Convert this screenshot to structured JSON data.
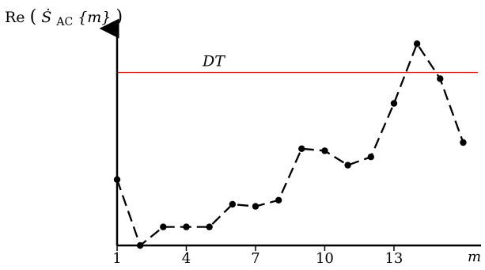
{
  "chart_data": {
    "type": "line",
    "ylabel": {
      "prefix": "Re",
      "open": "(",
      "symbol": "Ṡ",
      "subscript": "AC",
      "arg": "{m}",
      "close": ")"
    },
    "xlabel": "m",
    "x_ticks": [
      "1",
      "4",
      "7",
      "10",
      "13"
    ],
    "xlim": [
      1,
      16.5
    ],
    "ylim": [
      0,
      100
    ],
    "y_ticks": [],
    "grid": false,
    "series": [
      {
        "style": "dashed-with-dots",
        "color": "#000000",
        "x": [
          1,
          2,
          3,
          4,
          5,
          6,
          7,
          8,
          9,
          10,
          11,
          12,
          13,
          14,
          15,
          16
        ],
        "y": [
          32,
          0,
          9,
          9,
          9,
          20,
          19,
          22,
          47,
          46,
          39,
          43,
          69,
          98,
          81,
          50
        ]
      }
    ],
    "threshold": {
      "label": "DT",
      "value": 84,
      "color": "#e0201a"
    }
  }
}
